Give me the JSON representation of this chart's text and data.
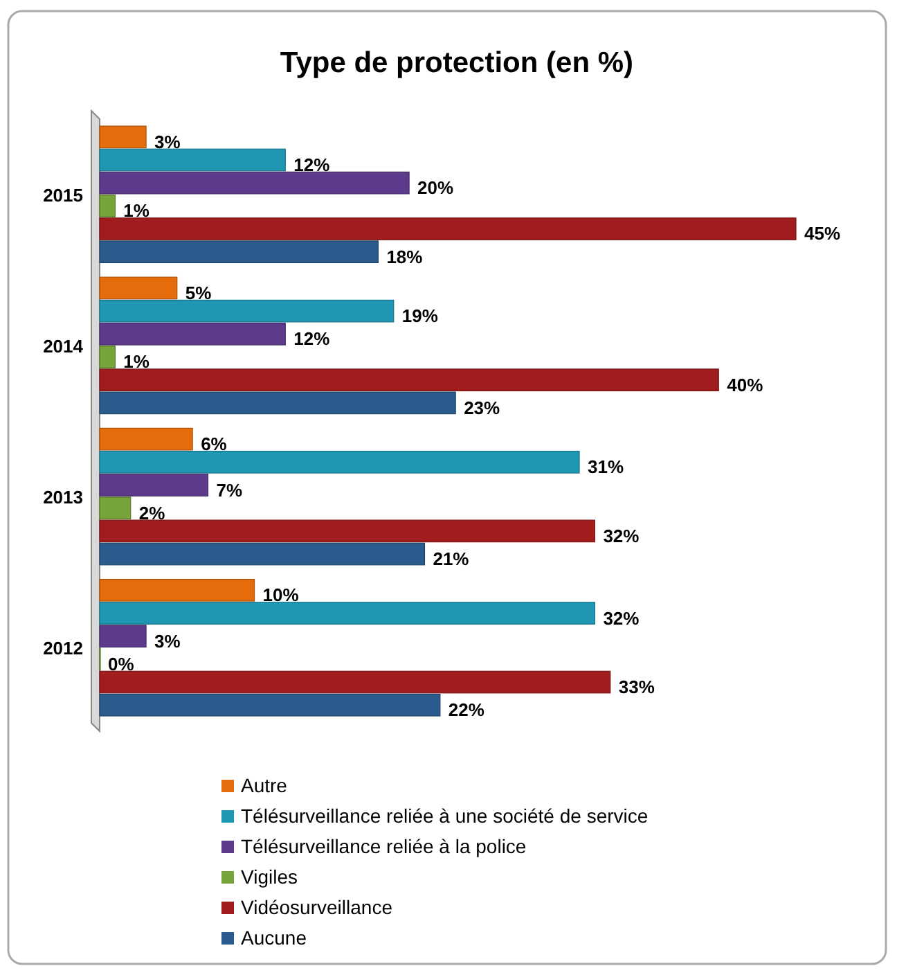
{
  "chart_data": {
    "type": "bar",
    "orientation": "horizontal",
    "title": "Type de protection (en %)",
    "categories": [
      "2015",
      "2014",
      "2013",
      "2012"
    ],
    "series": [
      {
        "name": "Autre",
        "color": "#e46c0a",
        "values": [
          3,
          5,
          6,
          10
        ],
        "value_labels": [
          "3%",
          "5%",
          "6%",
          "10%"
        ]
      },
      {
        "name": "Télésurveillance reliée à une société de service",
        "color": "#1f97b3",
        "values": [
          12,
          19,
          31,
          32
        ],
        "value_labels": [
          "12%",
          "19%",
          "31%",
          "32%"
        ]
      },
      {
        "name": "Télésurveillance reliée à la police",
        "color": "#5c3a8c",
        "values": [
          20,
          12,
          7,
          3
        ],
        "value_labels": [
          "20%",
          "12%",
          "7%",
          "3%"
        ]
      },
      {
        "name": "Vigiles",
        "color": "#76a33a",
        "values": [
          1,
          1,
          2,
          0
        ],
        "value_labels": [
          "1%",
          "1%",
          "2%",
          "0%"
        ]
      },
      {
        "name": "Vidéosurveillance",
        "color": "#a11c1c",
        "values": [
          45,
          40,
          32,
          33
        ],
        "value_labels": [
          "45%",
          "40%",
          "32%",
          "33%"
        ]
      },
      {
        "name": "Aucune",
        "color": "#2b5a8c",
        "values": [
          18,
          23,
          21,
          22
        ],
        "value_labels": [
          "18%",
          "23%",
          "21%",
          "22%"
        ]
      }
    ],
    "legend": "bottom"
  }
}
